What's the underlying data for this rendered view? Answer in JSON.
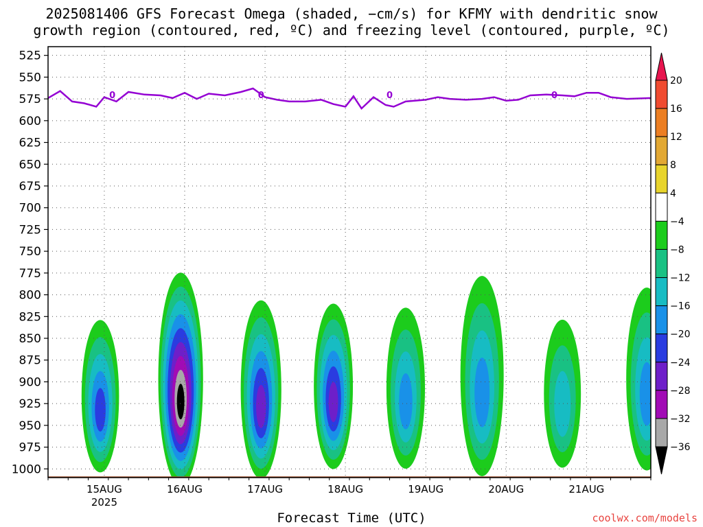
{
  "title_line1": "2025081406 GFS Forecast Omega (shaded, −cm/s) for KFMY with dendritic snow",
  "title_line2": "growth region (contoured, red, ºC) and freezing level (contoured, purple, ºC)",
  "credit": "coolwx.com/models",
  "chart_data": {
    "type": "heatmap",
    "title": "2025081406 GFS Forecast Omega (shaded, −cm/s) for KFMY with dendritic snow growth region (contoured, red, ºC) and freezing level (contoured, purple, ºC)",
    "xlabel": "Forecast Time (UTC)",
    "ylabel": "",
    "xlim": [
      0.3,
      7.8
    ],
    "ylim": [
      1010,
      515
    ],
    "x_ticks": [
      {
        "x": 1,
        "label": "15AUG",
        "sublabel": "2025"
      },
      {
        "x": 2,
        "label": "16AUG",
        "sublabel": ""
      },
      {
        "x": 3,
        "label": "17AUG",
        "sublabel": ""
      },
      {
        "x": 4,
        "label": "18AUG",
        "sublabel": ""
      },
      {
        "x": 5,
        "label": "19AUG",
        "sublabel": ""
      },
      {
        "x": 6,
        "label": "20AUG",
        "sublabel": ""
      },
      {
        "x": 7,
        "label": "21AUG",
        "sublabel": ""
      }
    ],
    "y_ticks": [
      525,
      550,
      575,
      600,
      625,
      650,
      675,
      700,
      725,
      750,
      775,
      800,
      825,
      850,
      875,
      900,
      925,
      950,
      975,
      1000
    ],
    "colorbar": {
      "labels": [
        "20",
        "16",
        "12",
        "8",
        "4",
        "−4",
        "−8",
        "−12",
        "−16",
        "−20",
        "−24",
        "−28",
        "−32",
        "−36"
      ],
      "levels": [
        20,
        16,
        12,
        8,
        4,
        -4,
        -8,
        -12,
        -16,
        -20,
        -24,
        -28,
        -32,
        -36
      ],
      "colors": [
        "#e8154f",
        "#f04b30",
        "#ec7e22",
        "#e2a833",
        "#e8d42c",
        "#ffffff",
        "#1ccc1c",
        "#19c183",
        "#17bcc3",
        "#1991e8",
        "#2a3ce0",
        "#6e1fc9",
        "#a10bb5",
        "#a8a8a8",
        "#000000"
      ]
    },
    "freezing_level": {
      "color": "#9400d3",
      "label": "0",
      "x": [
        0.3,
        0.45,
        0.6,
        0.75,
        0.9,
        1.0,
        1.15,
        1.3,
        1.5,
        1.7,
        1.85,
        2.0,
        2.15,
        2.3,
        2.5,
        2.7,
        2.85,
        3.0,
        3.15,
        3.3,
        3.5,
        3.7,
        3.85,
        4.0,
        4.1,
        4.2,
        4.35,
        4.5,
        4.6,
        4.75,
        5.0,
        5.15,
        5.3,
        5.5,
        5.7,
        5.85,
        6.0,
        6.15,
        6.3,
        6.5,
        6.7,
        6.85,
        7.0,
        7.15,
        7.3,
        7.5,
        7.8
      ],
      "y": [
        574,
        566,
        578,
        580,
        584,
        573,
        578,
        567,
        570,
        571,
        574,
        568,
        575,
        569,
        571,
        567,
        563,
        573,
        576,
        578,
        578,
        576,
        581,
        584,
        572,
        586,
        573,
        582,
        584,
        578,
        576,
        573,
        575,
        576,
        575,
        573,
        577,
        576,
        571,
        570,
        571,
        572,
        568,
        568,
        573,
        575,
        574
      ]
    },
    "omega_blobs": [
      {
        "x": 0.95,
        "p_top": 815,
        "p_bot": 990,
        "peak": -20
      },
      {
        "x": 1.95,
        "p_top": 755,
        "p_bot": 1000,
        "peak": -36
      },
      {
        "x": 2.95,
        "p_top": 790,
        "p_bot": 995,
        "peak": -24
      },
      {
        "x": 3.85,
        "p_top": 795,
        "p_bot": 985,
        "peak": -24
      },
      {
        "x": 4.75,
        "p_top": 800,
        "p_bot": 985,
        "peak": -16
      },
      {
        "x": 5.7,
        "p_top": 760,
        "p_bot": 990,
        "peak": -16
      },
      {
        "x": 6.7,
        "p_top": 815,
        "p_bot": 985,
        "peak": -12
      },
      {
        "x": 7.75,
        "p_top": 775,
        "p_bot": 985,
        "peak": -16
      }
    ],
    "ground": {
      "color": "#a0522d",
      "p_surface": 1011
    }
  }
}
